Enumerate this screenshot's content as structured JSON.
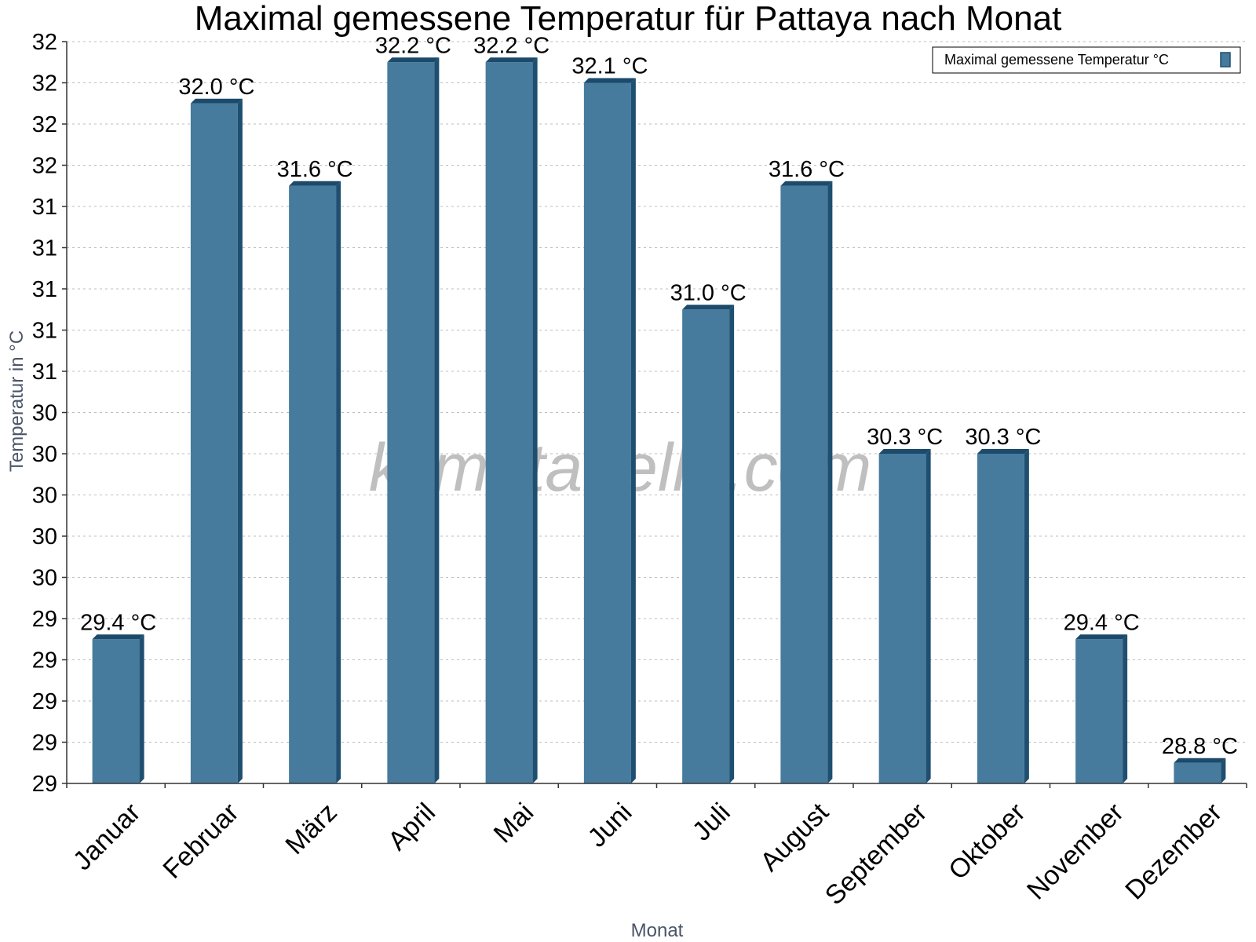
{
  "watermark": "klimatabelle.com",
  "colors": {
    "bar_face": "#467b9d",
    "bar_side": "#1f4f70",
    "bar_top": "#1b4a6b"
  },
  "chart_data": {
    "type": "bar",
    "title": "Maximal gemessene Temperatur für Pattaya nach Monat",
    "xlabel": "Monat",
    "ylabel": "Temperatur in °C",
    "ylim": [
      28.7,
      32.3
    ],
    "yticks": [
      28.7,
      28.9,
      29.1,
      29.3,
      29.5,
      29.7,
      29.9,
      30.1,
      30.3,
      30.5,
      30.7,
      30.9,
      31.1,
      31.3,
      31.5,
      31.7,
      31.9,
      32.1,
      32.3
    ],
    "ytick_labels": [
      "29",
      "29",
      "29",
      "29",
      "29",
      "30",
      "30",
      "30",
      "30",
      "30",
      "31",
      "31",
      "31",
      "31",
      "31",
      "32",
      "32",
      "32",
      "32"
    ],
    "grid": true,
    "legend_position": "top-right",
    "categories": [
      "Januar",
      "Februar",
      "März",
      "April",
      "Mai",
      "Juni",
      "Juli",
      "August",
      "September",
      "Oktober",
      "November",
      "Dezember"
    ],
    "series": [
      {
        "name": "Maximal gemessene Temperatur °C",
        "values": [
          29.4,
          32.0,
          31.6,
          32.2,
          32.2,
          32.1,
          31.0,
          31.6,
          30.3,
          30.3,
          29.4,
          28.8
        ],
        "labels": [
          "29.4 °C",
          "32.0 °C",
          "31.6 °C",
          "32.2 °C",
          "32.2 °C",
          "32.1 °C",
          "31.0 °C",
          "31.6 °C",
          "30.3 °C",
          "30.3 °C",
          "29.4 °C",
          "28.8 °C"
        ]
      }
    ]
  }
}
